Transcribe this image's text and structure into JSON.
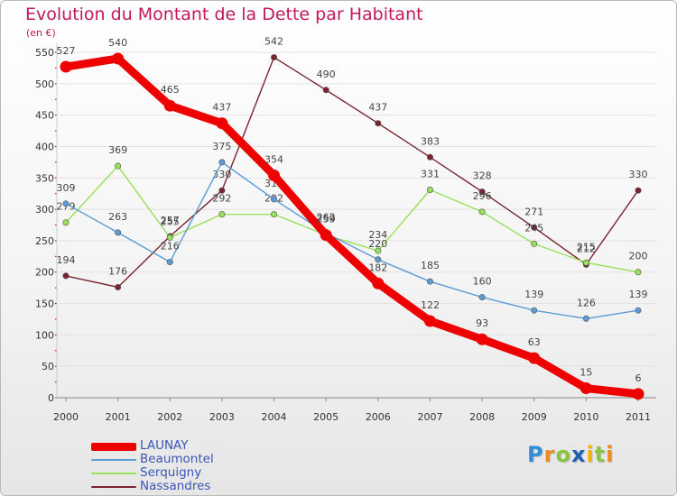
{
  "title": "Evolution du Montant de la Dette par Habitant",
  "subtitle": "(en €)",
  "brand": {
    "letters": [
      "P",
      "r",
      "o",
      "x",
      "i",
      "t",
      "i"
    ],
    "colors": [
      "#2f8fd6",
      "#f08a1c",
      "#8bc53f",
      "#1d5fb4",
      "#f0b400",
      "#8bc53f",
      "#f08a1c"
    ]
  },
  "chart_data": {
    "type": "line",
    "x": [
      "2000",
      "2001",
      "2002",
      "2003",
      "2004",
      "2005",
      "2006",
      "2007",
      "2008",
      "2009",
      "2010",
      "2011"
    ],
    "ylim": [
      0,
      550
    ],
    "yticks": [
      "0",
      "50",
      "100",
      "150",
      "200",
      "250",
      "300",
      "350",
      "400",
      "450",
      "500",
      "550"
    ],
    "grid": true,
    "legend_position": "bottom-left",
    "series": [
      {
        "name": "Nassandres",
        "color": "#7a2430",
        "values": [
          194,
          176,
          257,
          330,
          542,
          490,
          437,
          383,
          328,
          271,
          212,
          330
        ],
        "labels": [
          "194",
          "176",
          "257",
          "330",
          "542",
          "490",
          "437",
          "383",
          "328",
          "271",
          "212",
          "330"
        ]
      },
      {
        "name": "Serquigny",
        "color": "#98e05a",
        "values": [
          279,
          369,
          255,
          292,
          292,
          259,
          234,
          331,
          296,
          245,
          215,
          200
        ],
        "labels": [
          "279",
          "369",
          "255",
          "292",
          "292",
          "259",
          "234",
          "331",
          "296",
          "245",
          "215",
          "200"
        ]
      },
      {
        "name": "Beaumontel",
        "color": "#5b9bd5",
        "values": [
          309,
          263,
          216,
          375,
          316,
          262,
          220,
          185,
          160,
          139,
          126,
          139
        ],
        "labels": [
          "309",
          "263",
          "216",
          "375",
          "316",
          "262",
          "220",
          "185",
          "160",
          "139",
          "126",
          "139"
        ]
      },
      {
        "name": "LAUNAY",
        "color": "#ee0000",
        "values": [
          527,
          540,
          465,
          437,
          354,
          259,
          182,
          122,
          93,
          63,
          15,
          6
        ],
        "labels": [
          "527",
          "540",
          "465",
          "437",
          "354",
          "259",
          "182",
          "122",
          "93",
          "63",
          "15",
          "6"
        ]
      }
    ]
  }
}
